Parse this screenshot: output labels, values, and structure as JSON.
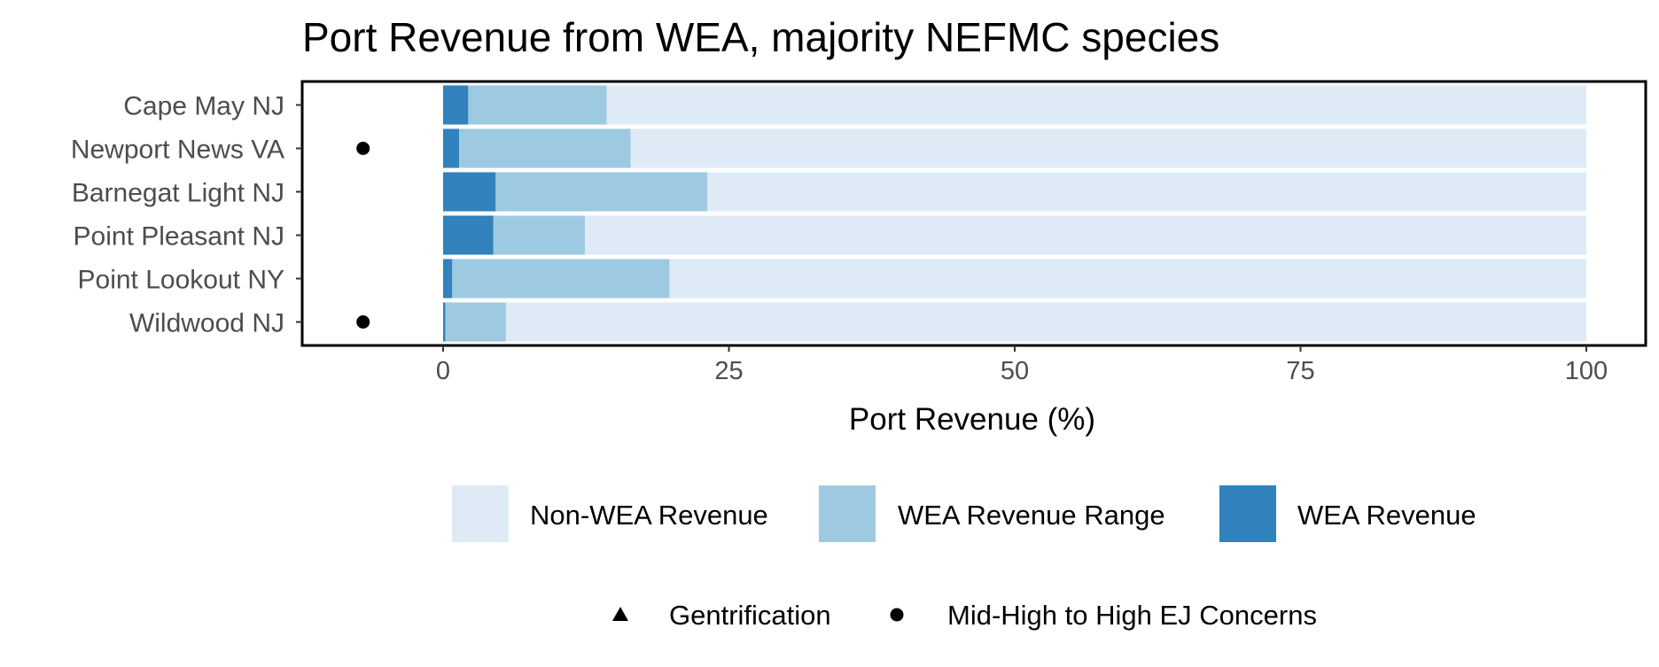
{
  "chart_data": {
    "type": "bar",
    "orientation": "horizontal",
    "stacked": true,
    "title": "Port Revenue from WEA, majority NEFMC species",
    "xlabel": "Port Revenue (%)",
    "ylabel": "",
    "xlim": [
      -12.5,
      104
    ],
    "xticks": [
      0,
      25,
      50,
      75,
      100
    ],
    "xtick_labels": [
      "0",
      "25",
      "50",
      "75",
      "100"
    ],
    "grid": false,
    "categories": [
      "Cape May NJ",
      "Newport News VA",
      "Barnegat Light NJ",
      "Point Pleasant NJ",
      "Point Lookout NY",
      "Wildwood NJ"
    ],
    "series": [
      {
        "name": "WEA Revenue",
        "color": "#3182bd",
        "values": [
          2.2,
          1.4,
          4.6,
          4.4,
          0.8,
          0.2
        ]
      },
      {
        "name": "WEA Revenue Range",
        "color": "#9ecae1",
        "values": [
          12.1,
          15.0,
          18.5,
          8.0,
          19.0,
          5.3
        ]
      },
      {
        "name": "Non-WEA Revenue",
        "color": "#deebf7",
        "values": [
          85.7,
          83.6,
          76.9,
          87.6,
          80.2,
          94.5
        ]
      }
    ],
    "legend": {
      "position": "bottom",
      "fill_entries": [
        {
          "label": "Non-WEA Revenue",
          "color": "#deebf7"
        },
        {
          "label": "WEA Revenue Range",
          "color": "#9ecae1"
        },
        {
          "label": "WEA Revenue",
          "color": "#3182bd"
        }
      ],
      "shape_entries": [
        {
          "label": "Gentrification",
          "shape": "triangle"
        },
        {
          "label": "Mid-High to High EJ Concerns",
          "shape": "circle"
        }
      ]
    },
    "markers": [
      {
        "category": "Newport News VA",
        "x": -7,
        "shape": "circle",
        "meaning": "Mid-High to High EJ Concerns"
      },
      {
        "category": "Wildwood NJ",
        "x": -7,
        "shape": "circle",
        "meaning": "Mid-High to High EJ Concerns"
      }
    ]
  }
}
